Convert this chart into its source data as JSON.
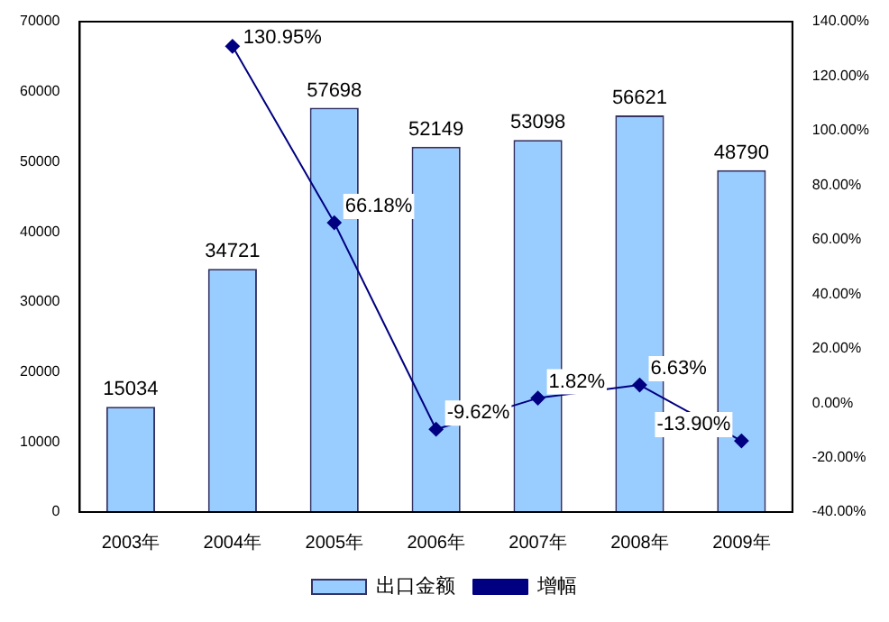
{
  "chart_data": {
    "type": "bar",
    "categories": [
      "2003年",
      "2004年",
      "2005年",
      "2006年",
      "2007年",
      "2008年",
      "2009年"
    ],
    "series": [
      {
        "name": "出口金额",
        "type": "bar",
        "color": "#99ccff",
        "values": [
          15034,
          34721,
          57698,
          52149,
          53098,
          56621,
          48790
        ]
      },
      {
        "name": "增幅",
        "type": "line",
        "axis": "y2",
        "color": "#000080",
        "marker": "diamond",
        "values": [
          null,
          130.95,
          66.18,
          -9.62,
          1.82,
          6.63,
          -13.9
        ],
        "value_labels": [
          null,
          "130.95%",
          "66.18%",
          "-9.62%",
          "1.82%",
          "6.63%",
          "-13.90%"
        ]
      }
    ],
    "data_labels": true,
    "ylim": [
      0,
      70000
    ],
    "yticks": [
      0,
      10000,
      20000,
      30000,
      40000,
      50000,
      60000,
      70000
    ],
    "y2lim": [
      -40,
      140
    ],
    "y2ticks": [
      {
        "value": -40,
        "label": "-40.00%"
      },
      {
        "value": -20,
        "label": "-20.00%"
      },
      {
        "value": 0,
        "label": "0.00%"
      },
      {
        "value": 20,
        "label": "20.00%"
      },
      {
        "value": 40,
        "label": "40.00%"
      },
      {
        "value": 60,
        "label": "60.00%"
      },
      {
        "value": 80,
        "label": "80.00%"
      },
      {
        "value": 100,
        "label": "100.00%"
      },
      {
        "value": 120,
        "label": "120.00%"
      },
      {
        "value": 140,
        "label": "140.00%"
      }
    ],
    "grid": false,
    "legend": "bottom"
  }
}
